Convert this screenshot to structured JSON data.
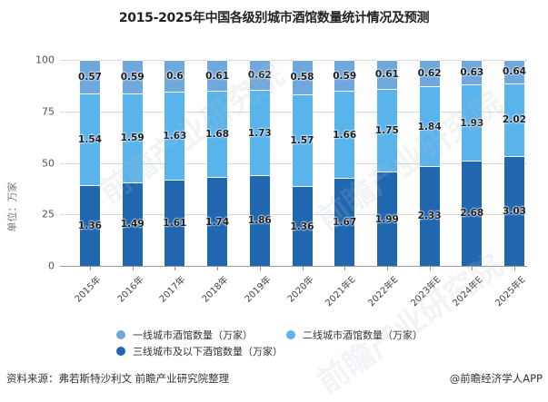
{
  "title": "2015-2025年中国各级别城市酒馆数量统计情况及预测",
  "y_axis_label": "单位：万家",
  "y_ticks": [
    "0",
    "25",
    "50",
    "75",
    "100"
  ],
  "legend": [
    {
      "label": "一线城市酒馆数量（万家）",
      "color": "#6fa8dc"
    },
    {
      "label": "二线城市酒馆数量（万家）",
      "color": "#5ab4ec"
    },
    {
      "label": "三线城市及以下酒馆数量（万家）",
      "color": "#2067b0"
    }
  ],
  "footer": {
    "source": "资料来源：弗若斯特沙利文 前瞻产业研究院整理",
    "credit": "@前瞻经济学人APP"
  },
  "watermark": "前瞻产业研究院",
  "chart_data": {
    "type": "bar",
    "stacked": true,
    "normalized_percent": true,
    "title": "2015-2025年中国各级别城市酒馆数量统计情况及预测",
    "xlabel": "",
    "ylabel": "单位：万家",
    "ylim": [
      0,
      100
    ],
    "y_ticks": [
      0,
      25,
      50,
      75,
      100
    ],
    "grid": true,
    "legend_position": "bottom",
    "categories": [
      "2015年",
      "2016年",
      "2017年",
      "2018年",
      "2019年",
      "2020年",
      "2021年E",
      "2022年E",
      "2023年E",
      "2024年E",
      "2025年E"
    ],
    "series": [
      {
        "name": "三线城市及以下酒馆数量（万家）",
        "color": "#2067b0",
        "values": [
          1.36,
          1.49,
          1.61,
          1.74,
          1.86,
          1.36,
          1.67,
          1.99,
          2.33,
          2.68,
          3.03
        ]
      },
      {
        "name": "二线城市酒馆数量（万家）",
        "color": "#5ab4ec",
        "values": [
          1.54,
          1.59,
          1.63,
          1.68,
          1.73,
          1.57,
          1.66,
          1.75,
          1.84,
          1.93,
          2.02
        ]
      },
      {
        "name": "一线城市酒馆数量（万家）",
        "color": "#6fa8dc",
        "values": [
          0.57,
          0.59,
          0.6,
          0.61,
          0.62,
          0.58,
          0.59,
          0.61,
          0.62,
          0.63,
          0.64
        ]
      }
    ]
  }
}
